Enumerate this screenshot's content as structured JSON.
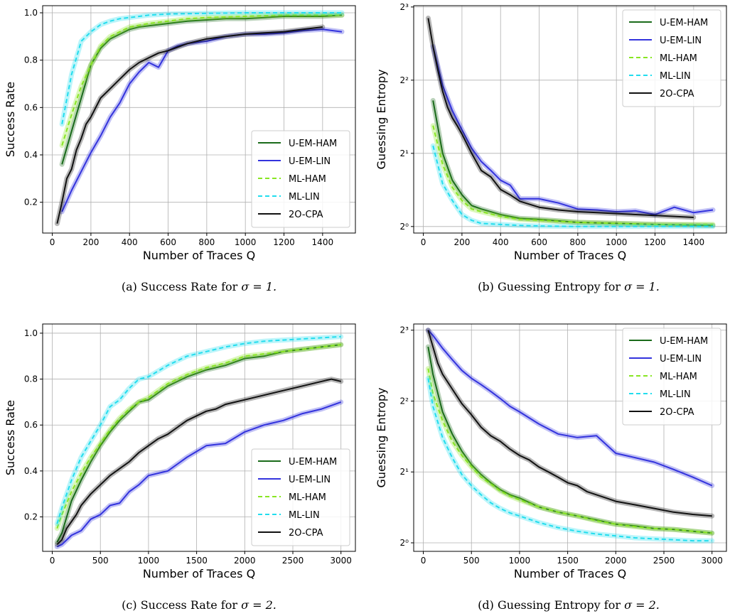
{
  "legend_items": [
    {
      "name": "U-EM-HAM",
      "color": "#1a6b1a",
      "dash": "solid"
    },
    {
      "name": "U-EM-LIN",
      "color": "#3333dd",
      "dash": "solid"
    },
    {
      "name": "ML-HAM",
      "color": "#88e622",
      "dash": "dashed"
    },
    {
      "name": "ML-LIN",
      "color": "#22ddee",
      "dash": "dashed"
    },
    {
      "name": "2O-CPA",
      "color": "#111111",
      "dash": "solid"
    }
  ],
  "captions": [
    {
      "label": "(a)",
      "text": "Success Rate for",
      "sigma": "σ = 1."
    },
    {
      "label": "(b)",
      "text": "Guessing Entropy for",
      "sigma": "σ = 1."
    },
    {
      "label": "(c)",
      "text": "Success Rate for",
      "sigma": "σ = 2."
    },
    {
      "label": "(d)",
      "text": "Guessing Entropy for",
      "sigma": "σ = 2."
    }
  ],
  "chart_data": [
    {
      "type": "line",
      "xlabel": "Number of Traces Q",
      "ylabel": "Success Rate",
      "xlim": [
        -50,
        1570
      ],
      "ylim": [
        0.07,
        1.03
      ],
      "xticks": [
        0,
        200,
        400,
        600,
        800,
        1000,
        1200,
        1400
      ],
      "yticks": [
        0.2,
        0.4,
        0.6,
        0.8,
        1.0
      ],
      "ytick_labels": [
        "0.2",
        "0.4",
        "0.6",
        "0.8",
        "1.0"
      ],
      "grid": true,
      "legend": "lower-right",
      "series": [
        {
          "name": "U-EM-HAM",
          "x": [
            50,
            100,
            150,
            200,
            250,
            300,
            350,
            400,
            450,
            500,
            600,
            700,
            800,
            900,
            1000,
            1100,
            1200,
            1300,
            1400,
            1500
          ],
          "y": [
            0.36,
            0.5,
            0.64,
            0.78,
            0.85,
            0.89,
            0.91,
            0.93,
            0.94,
            0.945,
            0.955,
            0.965,
            0.97,
            0.975,
            0.975,
            0.98,
            0.985,
            0.985,
            0.985,
            0.99
          ]
        },
        {
          "name": "U-EM-LIN",
          "x": [
            50,
            100,
            150,
            200,
            250,
            300,
            350,
            400,
            450,
            500,
            550,
            600,
            650,
            700,
            800,
            900,
            1000,
            1100,
            1200,
            1300,
            1400,
            1500
          ],
          "y": [
            0.16,
            0.25,
            0.33,
            0.41,
            0.48,
            0.56,
            0.62,
            0.7,
            0.75,
            0.79,
            0.77,
            0.84,
            0.86,
            0.87,
            0.88,
            0.9,
            0.91,
            0.91,
            0.915,
            0.925,
            0.93,
            0.92
          ]
        },
        {
          "name": "ML-HAM",
          "x": [
            50,
            100,
            150,
            200,
            250,
            300,
            350,
            400,
            500,
            600,
            700,
            800,
            1000,
            1200,
            1500
          ],
          "y": [
            0.44,
            0.57,
            0.69,
            0.78,
            0.86,
            0.9,
            0.92,
            0.94,
            0.955,
            0.965,
            0.975,
            0.98,
            0.985,
            0.99,
            0.99
          ]
        },
        {
          "name": "ML-LIN",
          "x": [
            50,
            100,
            150,
            200,
            250,
            300,
            350,
            400,
            500,
            600,
            800,
            1000,
            1200,
            1500
          ],
          "y": [
            0.53,
            0.74,
            0.88,
            0.92,
            0.95,
            0.965,
            0.975,
            0.98,
            0.99,
            0.995,
            0.998,
            1.0,
            1.0,
            1.0
          ]
        },
        {
          "name": "2O-CPA",
          "x": [
            25,
            50,
            75,
            100,
            125,
            150,
            175,
            200,
            250,
            300,
            350,
            400,
            450,
            500,
            550,
            600,
            700,
            800,
            900,
            1000,
            1100,
            1200,
            1300,
            1400
          ],
          "y": [
            0.11,
            0.2,
            0.3,
            0.34,
            0.42,
            0.47,
            0.53,
            0.56,
            0.64,
            0.68,
            0.72,
            0.76,
            0.79,
            0.81,
            0.83,
            0.84,
            0.87,
            0.89,
            0.9,
            0.91,
            0.915,
            0.92,
            0.93,
            0.94
          ]
        }
      ]
    },
    {
      "type": "line",
      "xlabel": "Number of Traces Q",
      "ylabel": "Guessing Entropy",
      "xlim": [
        -50,
        1570
      ],
      "ylim": [
        0.94,
        8.1
      ],
      "log_base": 2,
      "xticks": [
        0,
        200,
        400,
        600,
        800,
        1000,
        1200,
        1400
      ],
      "yticks": [
        1,
        2,
        4,
        8
      ],
      "ytick_labels": [
        "2⁰",
        "2¹",
        "2²",
        "2³"
      ],
      "grid": true,
      "legend": "top-right",
      "series": [
        {
          "name": "U-EM-HAM",
          "x": [
            50,
            100,
            150,
            200,
            250,
            300,
            400,
            500,
            600,
            800,
            1000,
            1200,
            1500
          ],
          "y": [
            3.3,
            2.0,
            1.55,
            1.35,
            1.22,
            1.18,
            1.12,
            1.08,
            1.07,
            1.04,
            1.03,
            1.02,
            1.01
          ]
        },
        {
          "name": "U-EM-LIN",
          "x": [
            50,
            100,
            150,
            200,
            250,
            300,
            350,
            400,
            450,
            500,
            600,
            700,
            800,
            900,
            1000,
            1100,
            1200,
            1300,
            1400,
            1500
          ],
          "y": [
            5.5,
            3.8,
            3.0,
            2.5,
            2.1,
            1.85,
            1.7,
            1.55,
            1.48,
            1.3,
            1.3,
            1.25,
            1.18,
            1.17,
            1.15,
            1.16,
            1.12,
            1.2,
            1.14,
            1.17
          ]
        },
        {
          "name": "ML-HAM",
          "x": [
            50,
            100,
            150,
            200,
            250,
            300,
            400,
            500,
            600,
            800,
            1000,
            1200,
            1500
          ],
          "y": [
            2.6,
            1.8,
            1.45,
            1.28,
            1.18,
            1.15,
            1.1,
            1.07,
            1.06,
            1.04,
            1.03,
            1.02,
            1.02
          ]
        },
        {
          "name": "ML-LIN",
          "x": [
            50,
            100,
            150,
            200,
            250,
            300,
            400,
            500,
            600,
            800,
            1000,
            1200,
            1500
          ],
          "y": [
            2.15,
            1.5,
            1.28,
            1.12,
            1.06,
            1.03,
            1.02,
            1.01,
            1.005,
            1.0,
            1.0,
            1.0,
            1.0
          ]
        },
        {
          "name": "2O-CPA",
          "x": [
            25,
            50,
            75,
            100,
            125,
            150,
            175,
            200,
            250,
            300,
            350,
            400,
            450,
            500,
            600,
            700,
            800,
            900,
            1000,
            1100,
            1200,
            1300,
            1400
          ],
          "y": [
            7.2,
            5.5,
            4.4,
            3.6,
            3.1,
            2.8,
            2.6,
            2.4,
            2.0,
            1.7,
            1.6,
            1.42,
            1.35,
            1.27,
            1.2,
            1.17,
            1.15,
            1.14,
            1.13,
            1.12,
            1.11,
            1.1,
            1.09
          ]
        }
      ]
    },
    {
      "type": "line",
      "xlabel": "Number of Traces Q",
      "ylabel": "Success Rate",
      "xlim": [
        -100,
        3150
      ],
      "ylim": [
        0.05,
        1.04
      ],
      "xticks": [
        0,
        500,
        1000,
        1500,
        2000,
        2500,
        3000
      ],
      "yticks": [
        0.2,
        0.4,
        0.6,
        0.8,
        1.0
      ],
      "ytick_labels": [
        "0.2",
        "0.4",
        "0.6",
        "0.8",
        "1.0"
      ],
      "grid": true,
      "legend": "lower-right",
      "series": [
        {
          "name": "U-EM-HAM",
          "x": [
            50,
            100,
            200,
            300,
            400,
            500,
            600,
            700,
            800,
            900,
            1000,
            1200,
            1400,
            1600,
            1800,
            2000,
            2200,
            2400,
            2600,
            2800,
            3000
          ],
          "y": [
            0.09,
            0.13,
            0.27,
            0.36,
            0.44,
            0.51,
            0.57,
            0.62,
            0.66,
            0.7,
            0.71,
            0.77,
            0.81,
            0.84,
            0.86,
            0.89,
            0.9,
            0.92,
            0.93,
            0.94,
            0.95
          ]
        },
        {
          "name": "U-EM-LIN",
          "x": [
            50,
            100,
            200,
            300,
            400,
            500,
            600,
            700,
            800,
            900,
            1000,
            1200,
            1400,
            1600,
            1800,
            2000,
            2200,
            2400,
            2600,
            2800,
            3000
          ],
          "y": [
            0.07,
            0.08,
            0.12,
            0.14,
            0.19,
            0.21,
            0.25,
            0.26,
            0.31,
            0.34,
            0.38,
            0.4,
            0.46,
            0.51,
            0.52,
            0.57,
            0.6,
            0.62,
            0.65,
            0.67,
            0.7
          ]
        },
        {
          "name": "ML-HAM",
          "x": [
            50,
            100,
            200,
            300,
            400,
            500,
            600,
            700,
            800,
            900,
            1000,
            1200,
            1400,
            1600,
            1800,
            2000,
            2200,
            2400,
            2600,
            2800,
            3000
          ],
          "y": [
            0.15,
            0.21,
            0.31,
            0.39,
            0.46,
            0.52,
            0.58,
            0.63,
            0.67,
            0.7,
            0.72,
            0.78,
            0.82,
            0.85,
            0.87,
            0.9,
            0.91,
            0.92,
            0.93,
            0.94,
            0.95
          ]
        },
        {
          "name": "ML-LIN",
          "x": [
            50,
            100,
            200,
            300,
            400,
            500,
            600,
            700,
            800,
            900,
            1000,
            1200,
            1400,
            1600,
            1800,
            2000,
            2200,
            2400,
            2600,
            2800,
            3000
          ],
          "y": [
            0.17,
            0.24,
            0.36,
            0.46,
            0.53,
            0.6,
            0.68,
            0.71,
            0.76,
            0.8,
            0.81,
            0.86,
            0.9,
            0.92,
            0.94,
            0.955,
            0.965,
            0.97,
            0.975,
            0.98,
            0.985
          ]
        },
        {
          "name": "2O-CPA",
          "x": [
            50,
            100,
            150,
            200,
            250,
            300,
            400,
            500,
            600,
            700,
            800,
            900,
            1000,
            1100,
            1200,
            1300,
            1400,
            1500,
            1600,
            1700,
            1800,
            1900,
            2000,
            2200,
            2400,
            2600,
            2800,
            2900,
            3000
          ],
          "y": [
            0.08,
            0.1,
            0.15,
            0.18,
            0.21,
            0.25,
            0.3,
            0.34,
            0.38,
            0.41,
            0.44,
            0.48,
            0.51,
            0.54,
            0.56,
            0.59,
            0.62,
            0.64,
            0.66,
            0.67,
            0.69,
            0.7,
            0.71,
            0.73,
            0.75,
            0.77,
            0.79,
            0.8,
            0.79
          ]
        }
      ]
    },
    {
      "type": "line",
      "xlabel": "Number of Traces Q",
      "ylabel": "Guessing Entropy",
      "xlim": [
        -100,
        3150
      ],
      "ylim": [
        0.92,
        8.5
      ],
      "log_base": 2,
      "xticks": [
        0,
        500,
        1000,
        1500,
        2000,
        2500,
        3000
      ],
      "yticks": [
        1,
        2,
        4,
        8
      ],
      "ytick_labels": [
        "2⁰",
        "2¹",
        "2²",
        "2³"
      ],
      "grid": true,
      "legend": "top-right",
      "series": [
        {
          "name": "U-EM-HAM",
          "x": [
            50,
            100,
            200,
            300,
            400,
            500,
            600,
            700,
            800,
            900,
            1000,
            1200,
            1400,
            1600,
            1800,
            2000,
            2200,
            2400,
            2600,
            2800,
            3000
          ],
          "y": [
            6.8,
            5.2,
            3.6,
            2.9,
            2.45,
            2.15,
            1.95,
            1.8,
            1.68,
            1.6,
            1.55,
            1.42,
            1.35,
            1.3,
            1.25,
            1.2,
            1.18,
            1.15,
            1.14,
            1.12,
            1.1
          ]
        },
        {
          "name": "U-EM-LIN",
          "x": [
            50,
            100,
            200,
            300,
            400,
            500,
            600,
            700,
            800,
            900,
            1000,
            1200,
            1400,
            1600,
            1800,
            2000,
            2200,
            2400,
            2600,
            2800,
            3000
          ],
          "y": [
            8.0,
            7.6,
            6.7,
            6.0,
            5.4,
            5.0,
            4.7,
            4.4,
            4.1,
            3.8,
            3.6,
            3.2,
            2.9,
            2.8,
            2.85,
            2.4,
            2.3,
            2.2,
            2.05,
            1.9,
            1.75
          ]
        },
        {
          "name": "ML-HAM",
          "x": [
            50,
            100,
            200,
            300,
            400,
            500,
            600,
            700,
            800,
            900,
            1000,
            1200,
            1400,
            1600,
            1800,
            2000,
            2200,
            2400,
            2600,
            2800,
            3000
          ],
          "y": [
            5.5,
            4.3,
            3.3,
            2.7,
            2.35,
            2.1,
            1.9,
            1.78,
            1.66,
            1.58,
            1.52,
            1.42,
            1.35,
            1.3,
            1.24,
            1.2,
            1.17,
            1.15,
            1.14,
            1.12,
            1.1
          ]
        },
        {
          "name": "ML-LIN",
          "x": [
            50,
            100,
            200,
            300,
            400,
            500,
            600,
            700,
            800,
            900,
            1000,
            1200,
            1400,
            1600,
            1800,
            2000,
            2200,
            2400,
            2600,
            2800,
            3000
          ],
          "y": [
            5.0,
            3.8,
            2.8,
            2.3,
            1.95,
            1.75,
            1.6,
            1.48,
            1.4,
            1.34,
            1.3,
            1.22,
            1.16,
            1.12,
            1.09,
            1.07,
            1.05,
            1.04,
            1.03,
            1.02,
            1.02
          ]
        },
        {
          "name": "2O-CPA",
          "x": [
            50,
            100,
            150,
            200,
            300,
            400,
            500,
            600,
            700,
            800,
            900,
            1000,
            1100,
            1200,
            1300,
            1400,
            1500,
            1600,
            1700,
            1800,
            1900,
            2000,
            2200,
            2400,
            2600,
            2800,
            3000
          ],
          "y": [
            8.0,
            6.8,
            5.8,
            5.2,
            4.5,
            3.9,
            3.5,
            3.1,
            2.85,
            2.7,
            2.5,
            2.35,
            2.25,
            2.1,
            2.0,
            1.9,
            1.8,
            1.75,
            1.65,
            1.6,
            1.55,
            1.5,
            1.45,
            1.4,
            1.35,
            1.32,
            1.3
          ]
        }
      ]
    }
  ]
}
